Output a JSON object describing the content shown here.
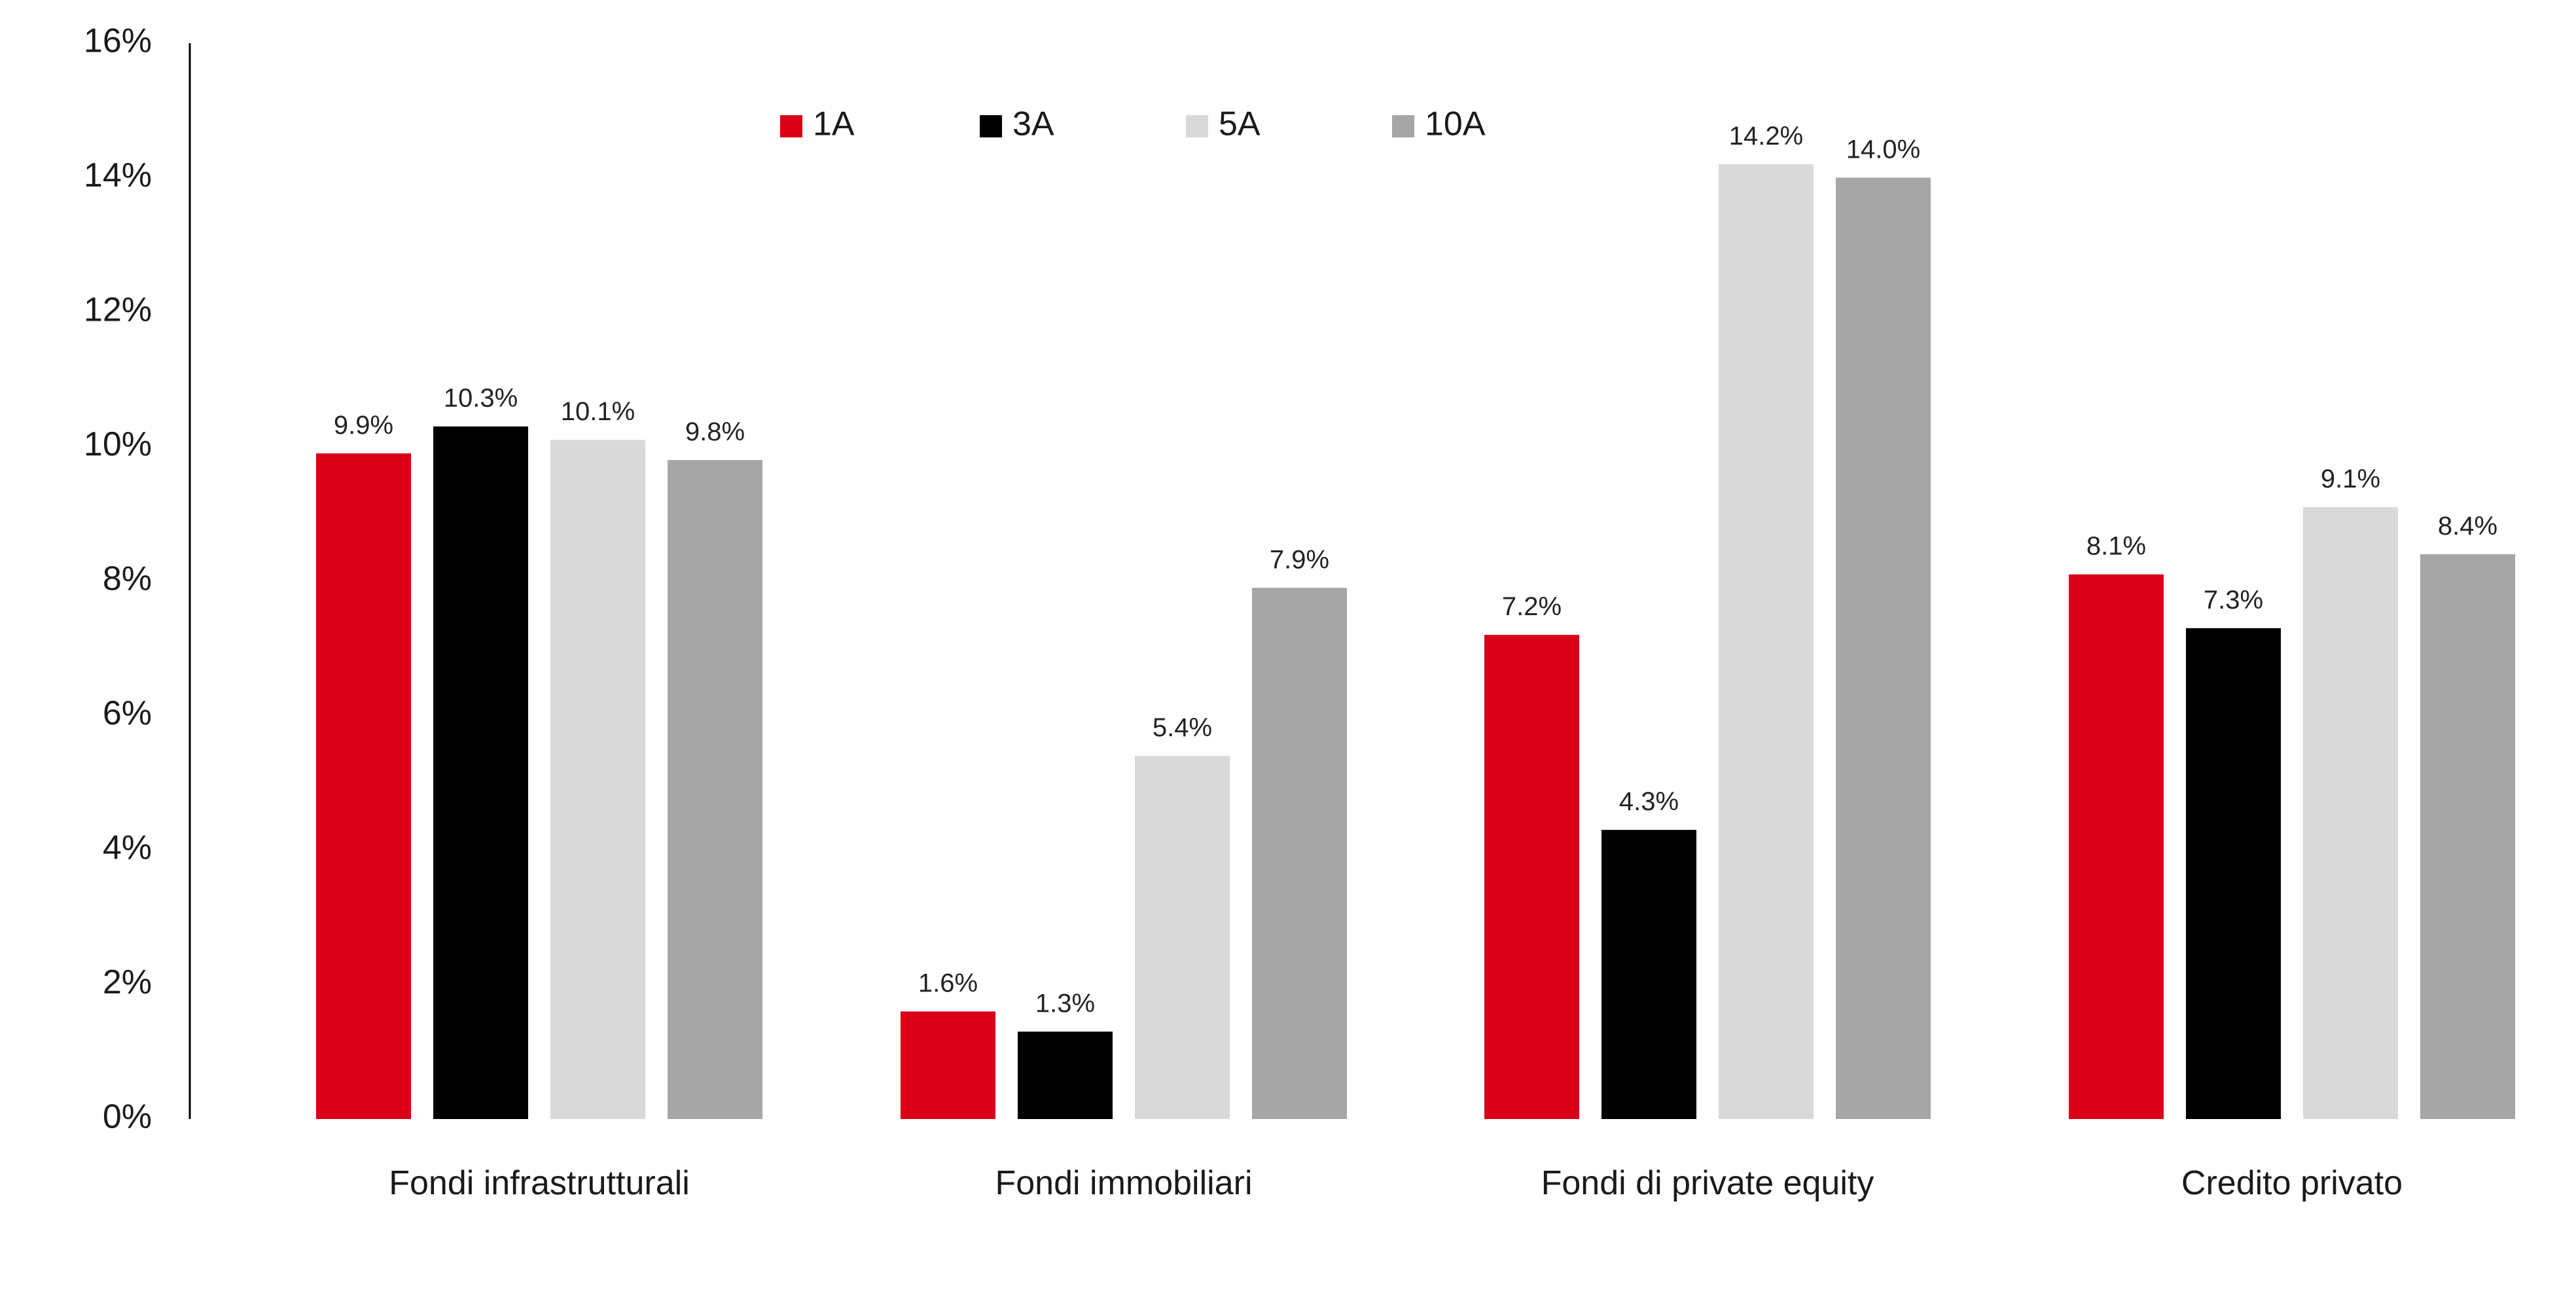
{
  "chart_data": {
    "type": "bar",
    "categories": [
      "Fondi infrastrutturali",
      "Fondi immobiliari",
      "Fondi di private equity",
      "Credito privato"
    ],
    "series": [
      {
        "name": "1A",
        "color": "#d90018",
        "values": [
          9.9,
          1.6,
          7.2,
          8.1
        ],
        "labels": [
          "9.9%",
          "1.6%",
          "7.2%",
          "8.1%"
        ]
      },
      {
        "name": "3A",
        "color": "#000000",
        "values": [
          10.3,
          1.3,
          4.3,
          7.3
        ],
        "labels": [
          "10.3%",
          "1.3%",
          "4.3%",
          "7.3%"
        ]
      },
      {
        "name": "5A",
        "color": "#d9d9d9",
        "values": [
          10.1,
          5.4,
          14.2,
          9.1
        ],
        "labels": [
          "10.1%",
          "5.4%",
          "14.2%",
          "9.1%"
        ]
      },
      {
        "name": "10A",
        "color": "#a6a6a6",
        "values": [
          9.8,
          7.9,
          14.0,
          8.4
        ],
        "labels": [
          "9.8%",
          "7.9%",
          "14.0%",
          "8.4%"
        ]
      }
    ],
    "y_ticks": [
      "0%",
      "2%",
      "4%",
      "6%",
      "8%",
      "10%",
      "12%",
      "14%",
      "16%"
    ],
    "ylim": [
      0,
      16
    ],
    "title": "",
    "xlabel": "",
    "ylabel": "",
    "grid": false,
    "legend_position": "top-center"
  }
}
